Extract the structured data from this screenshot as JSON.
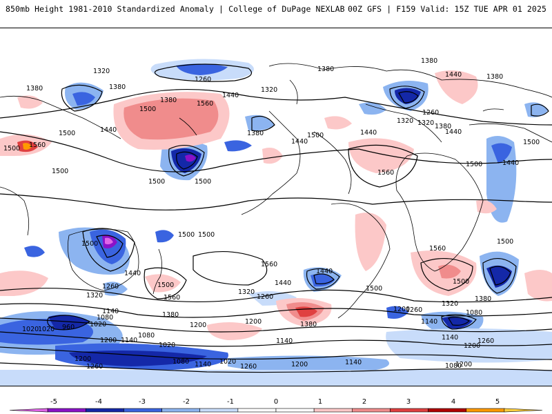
{
  "header": {
    "left_title": "850mb Height 1981-2010 Standardized Anomaly | College of DuPage NEXLAB",
    "right_title": "00Z GFS | F159 Valid: 15Z TUE APR 01 2025"
  },
  "colorbar": {
    "ticks": [
      "-5",
      "-4",
      "-3",
      "-2",
      "-1",
      "0",
      "1",
      "2",
      "3",
      "4",
      "5"
    ],
    "colors": [
      "#e066e8",
      "#8a12c8",
      "#1428a8",
      "#3a64e0",
      "#8cb4f0",
      "#c8dcfa",
      "#ffffff",
      "#ffffff",
      "#fcc8c8",
      "#f08c8c",
      "#e04040",
      "#b00000",
      "#ff9a00",
      "#ffd040"
    ]
  },
  "map": {
    "contour_labels": [
      "1320",
      "1260",
      "1380",
      "1380",
      "1440",
      "1380",
      "1380",
      "1440",
      "1380",
      "1380",
      "1320",
      "1500",
      "1560",
      "1440",
      "1320",
      "1260",
      "1320",
      "1380",
      "1500",
      "1380",
      "1500",
      "1440",
      "1440",
      "1500",
      "1440",
      "1560",
      "1500",
      "1500",
      "1560",
      "1500",
      "1500",
      "1500",
      "1500",
      "1500",
      "1500",
      "1500",
      "1500",
      "1560",
      "1560",
      "1440",
      "1500",
      "1440",
      "1320",
      "1260",
      "1320",
      "1260",
      "1560",
      "1440",
      "1500",
      "1380",
      "1320",
      "1380",
      "1140",
      "1200",
      "1080",
      "1200",
      "1380",
      "1260",
      "1140",
      "1200",
      "1080",
      "1020",
      "960",
      "1200",
      "1020",
      "1140",
      "1080",
      "1020",
      "1200",
      "1140",
      "1140",
      "1200",
      "1260",
      "1080",
      "1140",
      "1020",
      "1260",
      "1200",
      "1140",
      "1200",
      "1020",
      "1080",
      "1260",
      "1440"
    ]
  }
}
